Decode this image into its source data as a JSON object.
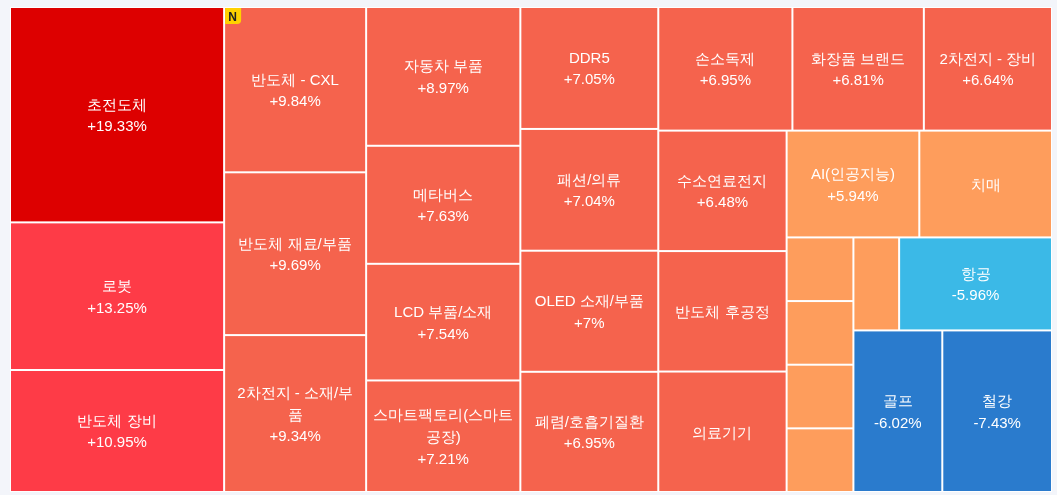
{
  "chart_data": {
    "type": "other",
    "categories": [
      "초전도체",
      "로봇",
      "반도체 장비",
      "반도체 - CXL",
      "반도체 재료/부품",
      "2차전지 - 소재/부품",
      "자동차 부품",
      "메타버스",
      "LCD 부품/소재",
      "스마트팩토리(스마트공장)",
      "DDR5",
      "패션/의류",
      "OLED 소재/부품",
      "폐렴/호흡기질환",
      "손소독제",
      "화장품 브랜드",
      "2차전지 - 장비",
      "수소연료전지",
      "반도체 후공정",
      "의료기기",
      "AI(인공지능)",
      "치매",
      null,
      null,
      null,
      null,
      null,
      "항공",
      "골프",
      "철강"
    ],
    "values": [
      19.33,
      13.25,
      10.95,
      9.84,
      9.69,
      9.34,
      8.97,
      7.63,
      7.54,
      7.21,
      7.05,
      7.04,
      7,
      6.95,
      6.95,
      6.81,
      6.64,
      6.48,
      null,
      null,
      5.94,
      null,
      null,
      null,
      null,
      null,
      null,
      -5.96,
      -6.02,
      -7.43
    ],
    "value_labels": [
      "+19.33%",
      "+13.25%",
      "+10.95%",
      "+9.84%",
      "+9.69%",
      "+9.34%",
      "+8.97%",
      "+7.63%",
      "+7.54%",
      "+7.21%",
      "+7.05%",
      "+7.04%",
      "+7%",
      "+6.95%",
      "+6.95%",
      "+6.81%",
      "+6.64%",
      "+6.48%",
      null,
      null,
      "+5.94%",
      null,
      null,
      null,
      null,
      null,
      null,
      "-5.96%",
      "-6.02%",
      "-7.43%"
    ],
    "colors": [
      "#dd0000",
      "#fe3b47",
      "#fe3b47",
      "#f5634d",
      "#f5634d",
      "#f5634d",
      "#f5634d",
      "#f5634d",
      "#f5634d",
      "#f5634d",
      "#f5634d",
      "#f5634d",
      "#f5634d",
      "#f5634d",
      "#f5634d",
      "#f5634d",
      "#f5634d",
      "#f5634d",
      "#f5634d",
      "#f5634d",
      "#fe9d5c",
      "#fe9d5c",
      "#fe9d5c",
      "#fe9d5c",
      "#fe9d5c",
      "#fe9d5c",
      "#fe9d5c",
      "#3bb9e7",
      "#2a7bcd",
      "#2a7bcd"
    ],
    "annotations": [
      {
        "text": "N",
        "x": "반도체 - CXL"
      }
    ]
  }
}
